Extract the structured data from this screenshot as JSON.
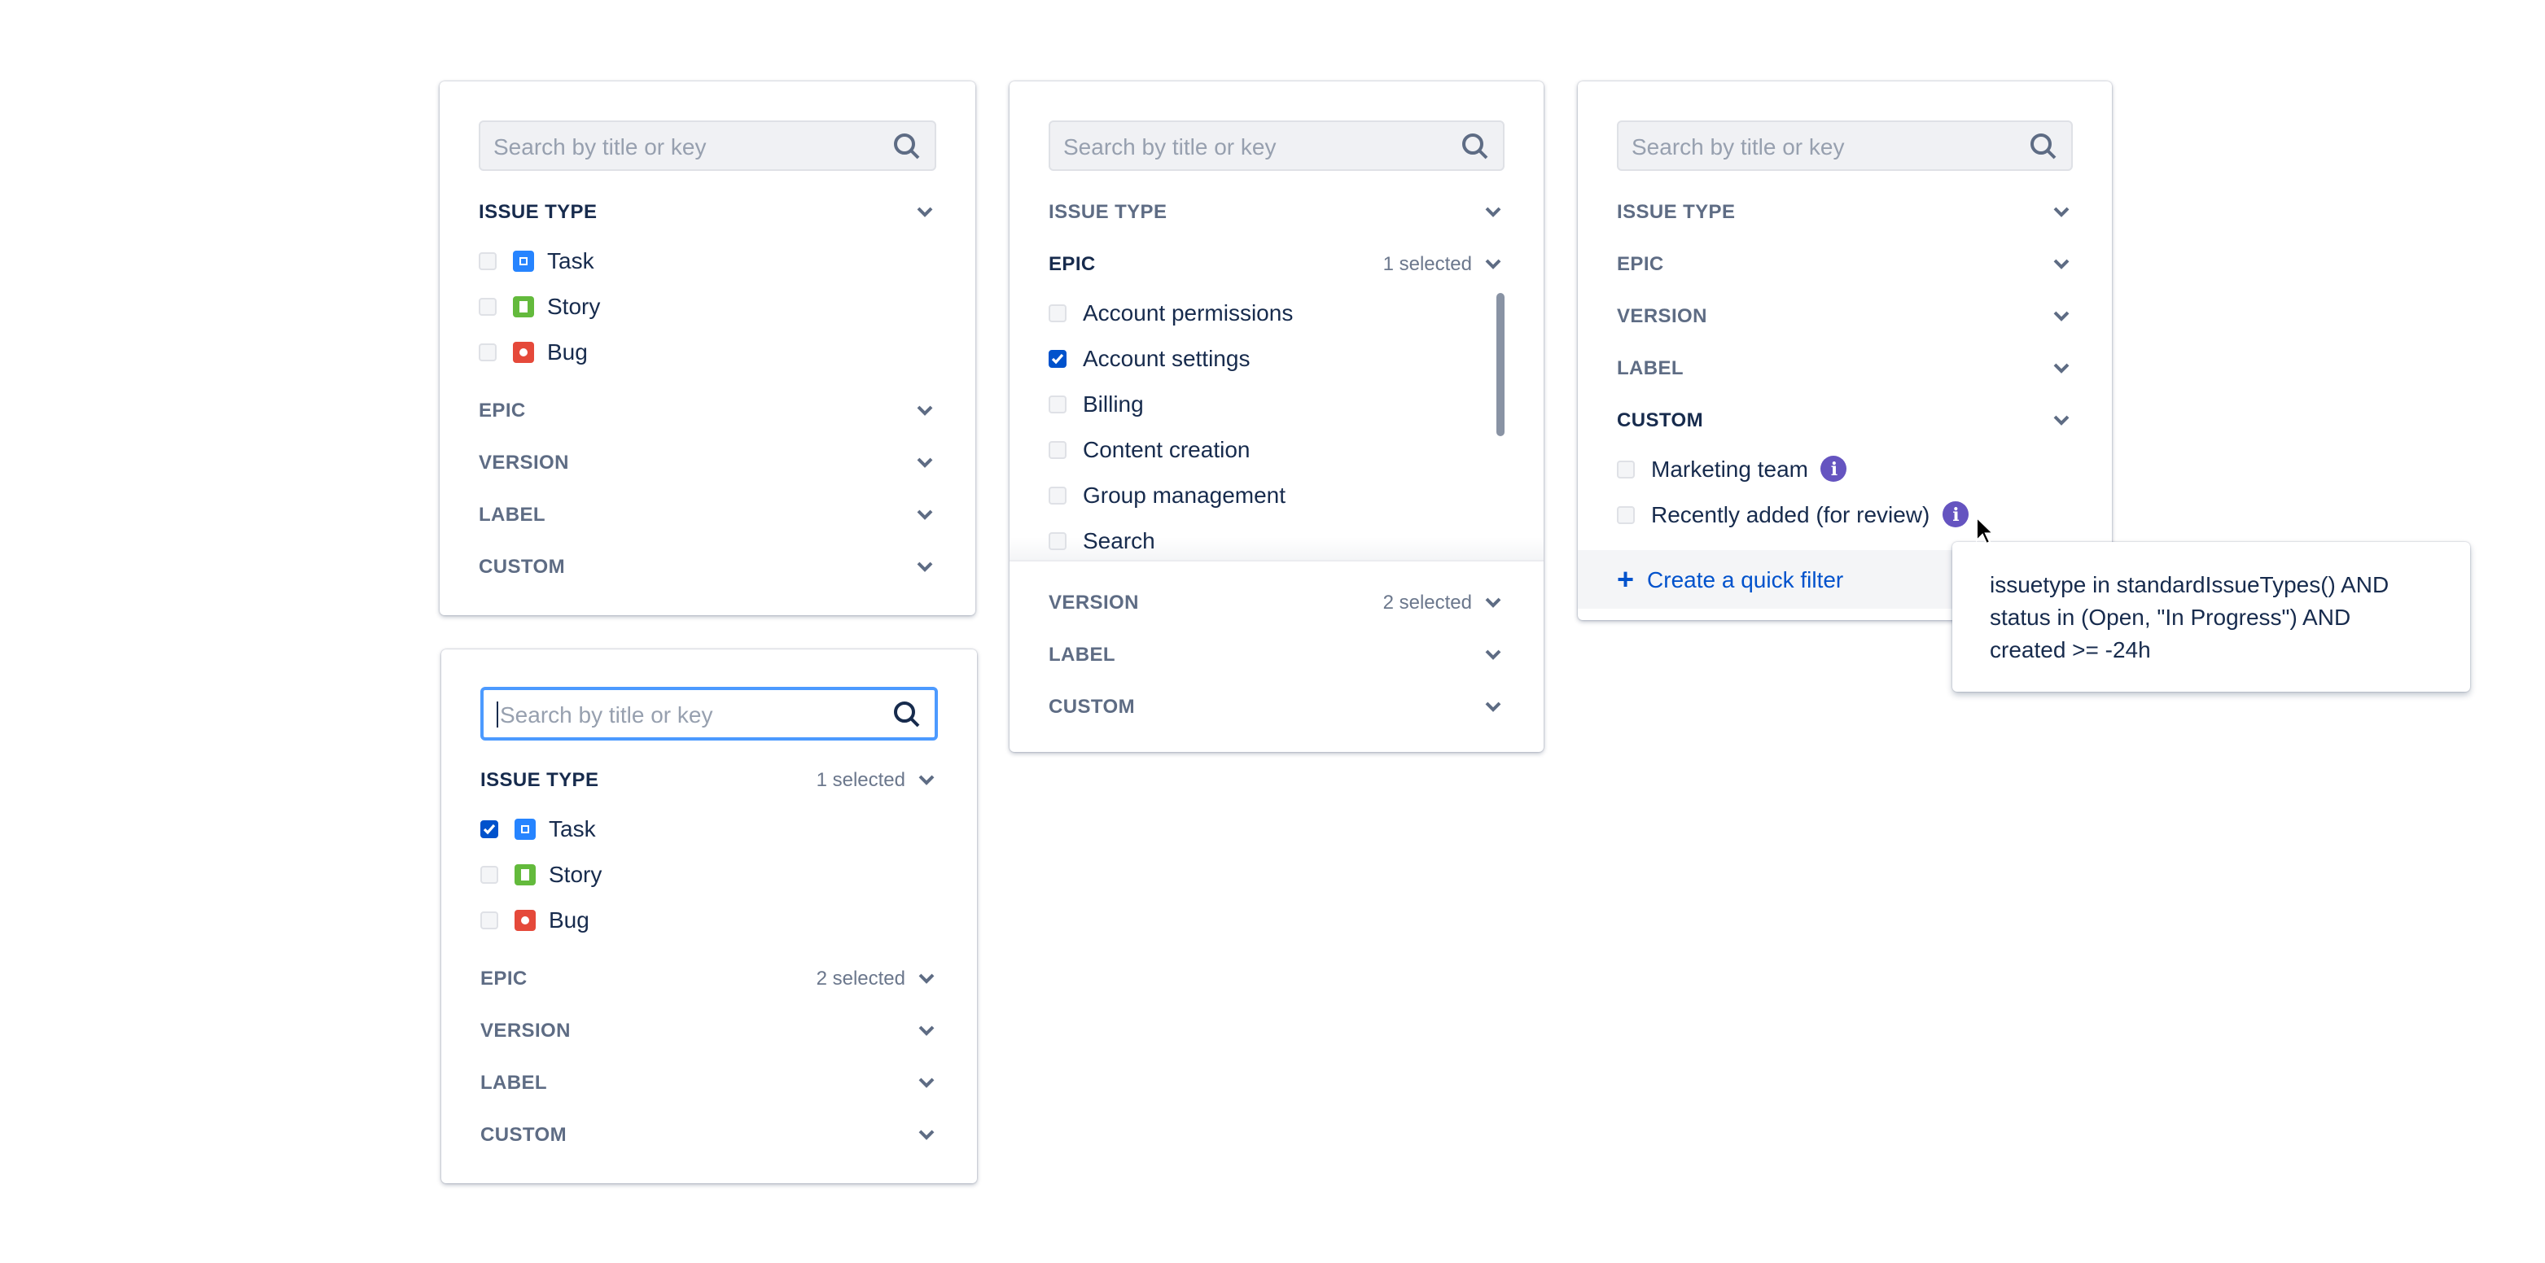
{
  "search_placeholder": "Search by title or key",
  "panels": {
    "p1": {
      "sections": [
        "ISSUE TYPE",
        "EPIC",
        "VERSION",
        "LABEL",
        "CUSTOM"
      ],
      "issue_types": [
        {
          "label": "Task",
          "checked": false
        },
        {
          "label": "Story",
          "checked": false
        },
        {
          "label": "Bug",
          "checked": false
        }
      ]
    },
    "p2": {
      "sections": [
        "ISSUE TYPE",
        "EPIC",
        "VERSION",
        "LABEL",
        "CUSTOM"
      ],
      "issue_type_count": "1 selected",
      "epic_count": "2 selected",
      "issue_types": [
        {
          "label": "Task",
          "checked": true
        },
        {
          "label": "Story",
          "checked": false
        },
        {
          "label": "Bug",
          "checked": false
        }
      ]
    },
    "p3": {
      "sections": [
        "ISSUE TYPE",
        "EPIC",
        "VERSION",
        "LABEL",
        "CUSTOM"
      ],
      "epic_count": "1 selected",
      "version_count": "2 selected",
      "epics": [
        {
          "label": "Account permissions",
          "checked": false
        },
        {
          "label": "Account settings",
          "checked": true
        },
        {
          "label": "Billing",
          "checked": false
        },
        {
          "label": "Content creation",
          "checked": false
        },
        {
          "label": "Group management",
          "checked": false
        },
        {
          "label": "Search",
          "checked": false
        }
      ]
    },
    "p4": {
      "sections": [
        "ISSUE TYPE",
        "EPIC",
        "VERSION",
        "LABEL",
        "CUSTOM"
      ],
      "custom": [
        {
          "label": "Marketing team",
          "checked": false
        },
        {
          "label": "Recently added (for review)",
          "checked": false
        }
      ],
      "create_label": "Create a quick filter"
    }
  },
  "tooltip": {
    "lines": [
      "issuetype in standardIssueTypes() AND",
      "status in (Open, \"In Progress\") AND",
      "created >= -24h"
    ]
  },
  "colors": {
    "task": "#2684ff",
    "story": "#63ba3c",
    "bug": "#e5493a",
    "info": "#6554c0",
    "checkbox_checked": "#0052cc",
    "link": "#0052cc",
    "focus_border": "#4c9aff"
  },
  "icons": [
    "search-icon",
    "chevron-down-icon",
    "task-icon",
    "story-icon",
    "bug-icon",
    "info-icon",
    "plus-icon",
    "mouse-cursor-icon"
  ]
}
